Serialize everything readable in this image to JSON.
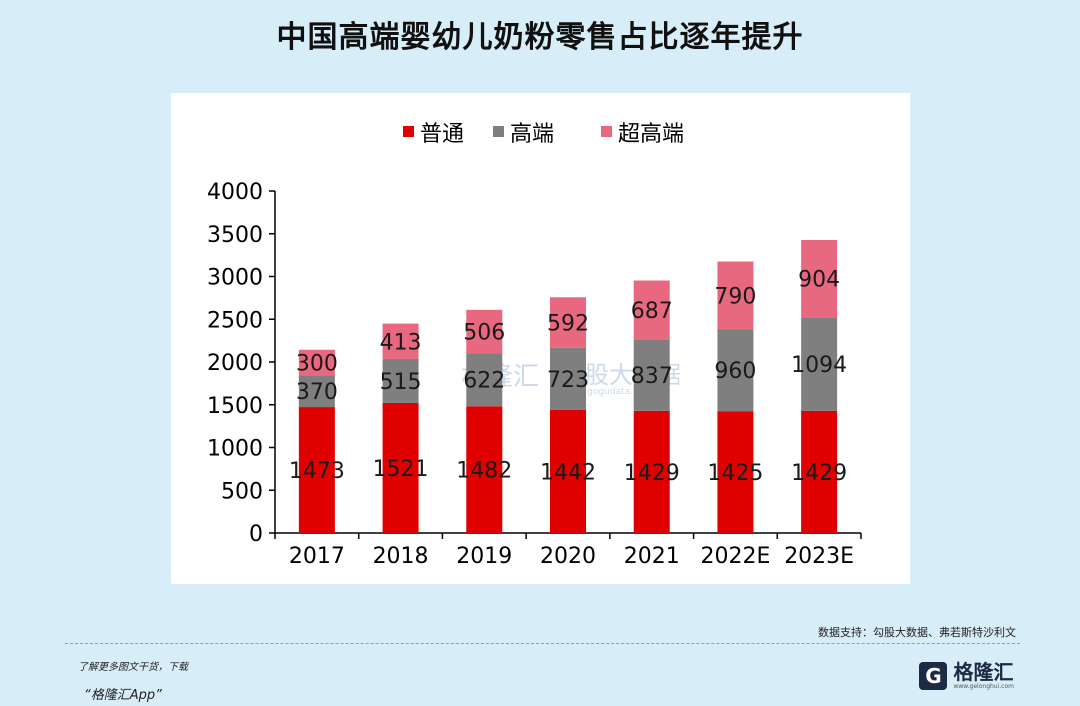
{
  "title": "中国高端婴幼儿奶粉零售占比逐年提升",
  "chart_data": {
    "type": "bar",
    "stacked": true,
    "categories": [
      "2017",
      "2018",
      "2019",
      "2020",
      "2021",
      "2022E",
      "2023E"
    ],
    "series": [
      {
        "name": "普通",
        "color": "#e00000",
        "values": [
          1473,
          1521,
          1482,
          1442,
          1429,
          1425,
          1429
        ]
      },
      {
        "name": "高端",
        "color": "#7f7f7f",
        "values": [
          370,
          515,
          622,
          723,
          837,
          960,
          1094
        ]
      },
      {
        "name": "超高端",
        "color": "#e8697f",
        "values": [
          300,
          413,
          506,
          592,
          687,
          790,
          904
        ]
      }
    ],
    "ylim": [
      0,
      4000
    ],
    "yticks": [
      0,
      500,
      1000,
      1500,
      2000,
      2500,
      3000,
      3500,
      4000
    ],
    "legend_position": "top",
    "grid": false
  },
  "watermark": {
    "brand": "格隆汇",
    "secondary": "勾股大数据",
    "domain": "www.gogudata.com"
  },
  "source": "数据支持：勾股大数据、弗若斯特沙利文",
  "footer": {
    "promo_line1": "了解更多图文干货，下载",
    "promo_line2": "“格隆汇App”",
    "brand_logo": "G",
    "brand_name": "格隆汇",
    "brand_domain": "www.gelonghui.com"
  }
}
